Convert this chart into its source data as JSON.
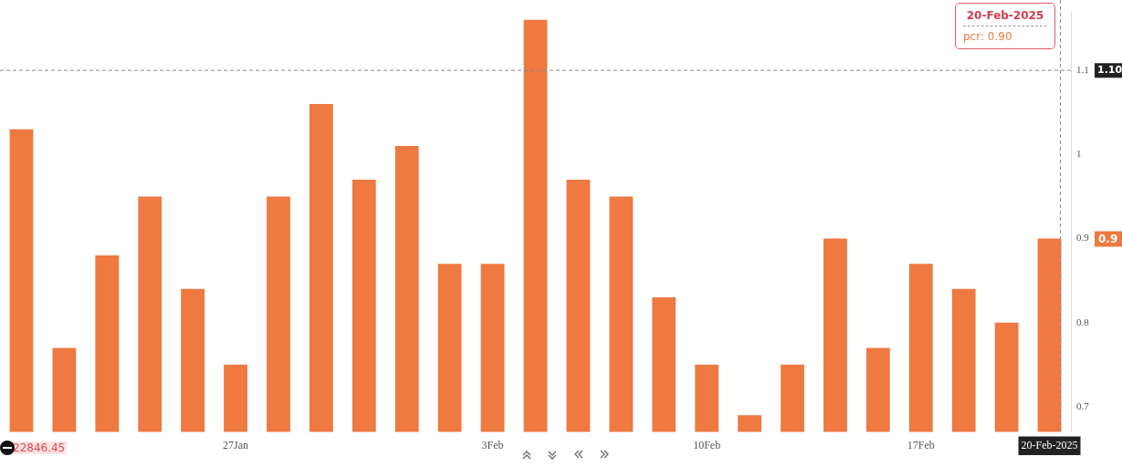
{
  "chart_data": {
    "type": "bar",
    "categories": [
      null,
      null,
      null,
      null,
      null,
      "27Jan",
      null,
      null,
      null,
      null,
      null,
      "3Feb",
      null,
      null,
      null,
      null,
      "10Feb",
      null,
      null,
      null,
      null,
      "17Feb",
      null,
      null,
      "20-Feb-2025"
    ],
    "values": [
      1.03,
      0.77,
      0.88,
      0.95,
      0.84,
      0.75,
      0.95,
      1.06,
      0.97,
      1.01,
      0.87,
      0.87,
      1.16,
      0.97,
      0.95,
      0.83,
      0.75,
      0.69,
      0.75,
      0.9,
      0.77,
      0.87,
      0.84,
      0.8,
      0.9
    ],
    "color": "#ee7941",
    "ylim": [
      0.67,
      1.17
    ],
    "yticks": [
      0.7,
      0.8,
      0.9,
      1,
      1.1
    ],
    "grid": false,
    "legend": false,
    "ref_lines": [
      {
        "axis": "y",
        "value": 1.1,
        "label": "1.10",
        "color": "#888888",
        "line_style": "dashed"
      },
      {
        "axis": "x",
        "value": "20-Feb-2025",
        "color": "#888888",
        "line_style": "dashed"
      }
    ],
    "annotations": [
      "22846.45",
      "20-Feb-2025",
      "pcr: 0.90",
      "0.9"
    ]
  }
}
